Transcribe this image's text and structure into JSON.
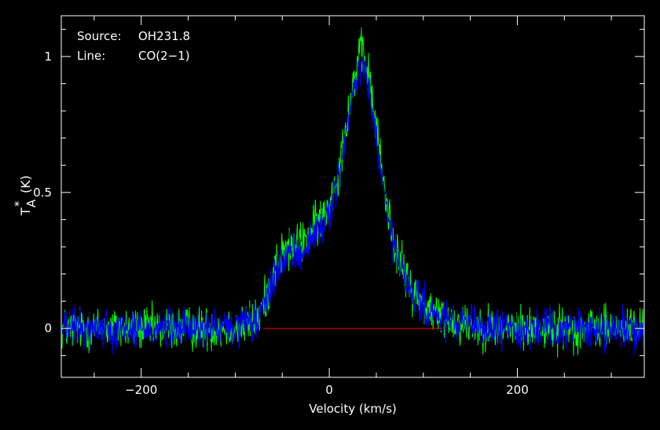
{
  "chart_data": {
    "type": "line",
    "xlabel": "Velocity (km/s)",
    "ylabel": "T",
    "ylabel_sub": "A",
    "ylabel_sup": "*",
    "ylabel_unit": "(K)",
    "xlim": [
      -285,
      335
    ],
    "ylim": [
      -0.18,
      1.15
    ],
    "xticks": [
      -200,
      0,
      200
    ],
    "xtick_labels": [
      "−200",
      "0",
      "200"
    ],
    "yticks": [
      0,
      0.5,
      1
    ],
    "ytick_labels": [
      "0",
      "0.5",
      "1"
    ],
    "grid": false,
    "annotations": [
      {
        "key": "Source:",
        "value": "OH231.8"
      },
      {
        "key": "Line:",
        "value": "CO(2−1)"
      }
    ],
    "baseline": {
      "x": [
        -70,
        120
      ],
      "y": 0,
      "color": "#ff0000"
    },
    "series": [
      {
        "color": "#00ff00",
        "noise": 0.05,
        "x": [
          -285,
          -250,
          -200,
          -150,
          -110,
          -90,
          -75,
          -65,
          -55,
          -45,
          -35,
          -25,
          -15,
          -5,
          0,
          10,
          20,
          30,
          35,
          40,
          50,
          60,
          70,
          80,
          90,
          100,
          110,
          120,
          140,
          180,
          220,
          260,
          300,
          335
        ],
        "y": [
          0,
          0,
          0,
          0,
          0,
          0.01,
          0.04,
          0.14,
          0.26,
          0.29,
          0.3,
          0.33,
          0.38,
          0.42,
          0.46,
          0.58,
          0.8,
          0.98,
          1.02,
          0.97,
          0.74,
          0.48,
          0.3,
          0.2,
          0.13,
          0.09,
          0.06,
          0.04,
          0.02,
          0,
          0,
          0,
          0,
          0
        ]
      },
      {
        "color": "#0000ff",
        "noise": 0.045,
        "x": [
          -285,
          -250,
          -200,
          -150,
          -110,
          -90,
          -75,
          -65,
          -55,
          -45,
          -35,
          -25,
          -15,
          -5,
          0,
          10,
          20,
          30,
          35,
          40,
          50,
          60,
          70,
          80,
          90,
          100,
          110,
          120,
          140,
          180,
          220,
          260,
          300,
          335
        ],
        "y": [
          0,
          0,
          0,
          0,
          0,
          0.01,
          0.03,
          0.12,
          0.23,
          0.26,
          0.27,
          0.3,
          0.35,
          0.39,
          0.43,
          0.55,
          0.76,
          0.93,
          0.97,
          0.92,
          0.7,
          0.45,
          0.28,
          0.18,
          0.12,
          0.08,
          0.05,
          0.03,
          0.01,
          0,
          0,
          0,
          0,
          0
        ]
      }
    ]
  }
}
